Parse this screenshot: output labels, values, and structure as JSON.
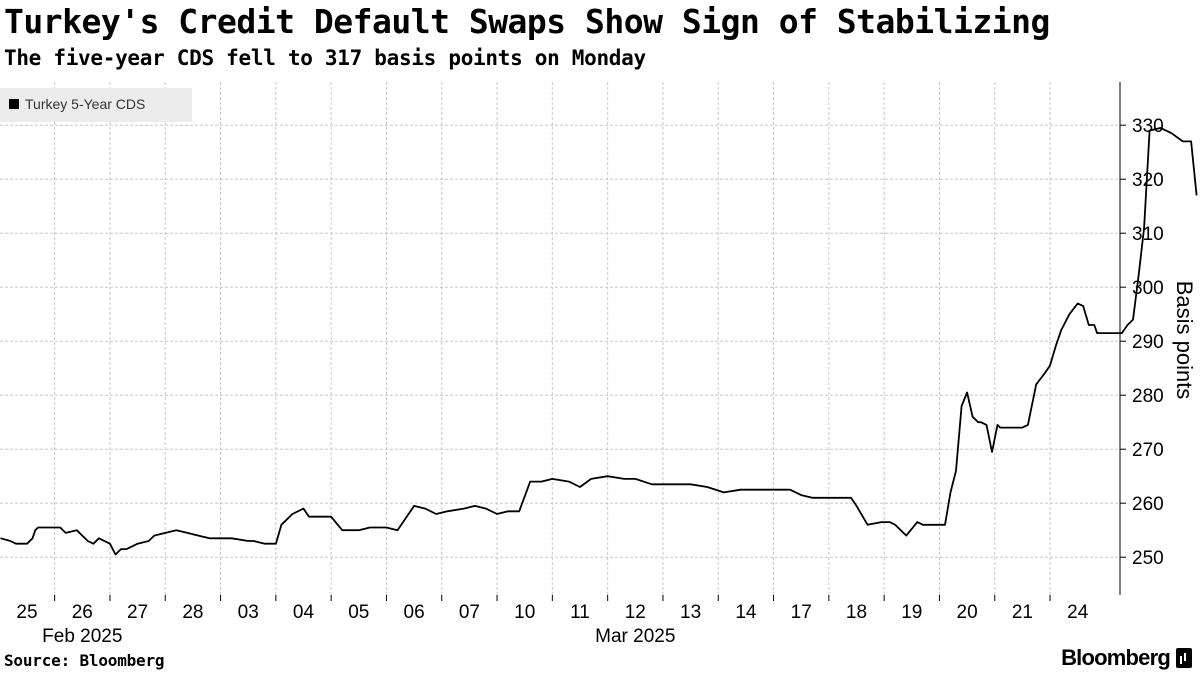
{
  "header": {
    "title": "Turkey's Credit Default Swaps Show Sign of Stabilizing",
    "subtitle": "The five-year CDS fell to 317 basis points on Monday"
  },
  "footer": {
    "source": "Source: Bloomberg",
    "brand": "Bloomberg"
  },
  "chart_data": {
    "type": "line",
    "title": "Turkey's Credit Default Swaps Show Sign of Stabilizing",
    "subtitle": "The five-year CDS fell to 317 basis points on Monday",
    "ylabel": "Basis points",
    "xlabel": "",
    "ylim": [
      243,
      338
    ],
    "yticks": [
      250,
      260,
      270,
      280,
      290,
      300,
      310,
      320,
      330
    ],
    "grid": true,
    "legend": {
      "placement": "top-left",
      "entries": [
        "Turkey 5-Year CDS"
      ]
    },
    "x_tick_labels": [
      "25",
      "26",
      "27",
      "28",
      "03",
      "04",
      "05",
      "06",
      "07",
      "10",
      "11",
      "12",
      "13",
      "14",
      "17",
      "18",
      "19",
      "20",
      "21",
      "24"
    ],
    "month_labels": [
      {
        "label": "Feb 2025",
        "at_tick": 1
      },
      {
        "label": "Mar 2025",
        "at_tick": 11
      }
    ],
    "line_color": "#000000",
    "series": [
      {
        "name": "Turkey 5-Year CDS",
        "x": [
          -0.48,
          -0.3,
          -0.2,
          0.0,
          0.1,
          0.15,
          0.2,
          0.35,
          0.5,
          0.6,
          0.7,
          0.9,
          1.1,
          1.2,
          1.3,
          1.5,
          1.6,
          1.7,
          1.8,
          2.0,
          2.2,
          2.3,
          2.5,
          2.7,
          2.9,
          3.1,
          3.3,
          3.5,
          3.7,
          4.0,
          4.1,
          4.3,
          4.5,
          4.6,
          4.8,
          5.0,
          5.1,
          5.3,
          5.5,
          5.7,
          6.0,
          6.2,
          6.3,
          6.5,
          6.7,
          7.0,
          7.2,
          7.4,
          7.6,
          7.9,
          8.1,
          8.3,
          8.5,
          8.7,
          8.9,
          9.1,
          9.3,
          9.5,
          9.8,
          10.0,
          10.2,
          10.5,
          10.8,
          11.0,
          11.3,
          11.5,
          11.8,
          12.0,
          12.3,
          12.6,
          12.9,
          13.1,
          13.5,
          13.8,
          14.0,
          14.2,
          14.35,
          14.5,
          14.7,
          14.9,
          15.0,
          15.2,
          15.45,
          15.6,
          15.7,
          15.9,
          16.1,
          16.2,
          16.3,
          16.35,
          16.45,
          16.55,
          16.6,
          16.7,
          16.8,
          16.9,
          17.0,
          17.1,
          17.2,
          17.25,
          17.35,
          17.45,
          17.55,
          17.6,
          17.7,
          17.8,
          17.9,
          18.0,
          18.1,
          18.25,
          18.4,
          18.5,
          18.6,
          18.7,
          18.85,
          19.0,
          19.1
        ],
        "values": [
          253.5,
          253,
          252.5,
          252.5,
          253.5,
          255,
          255.5,
          255.5,
          255.5,
          255.5,
          254.5,
          255,
          253,
          252.5,
          253.5,
          252.5,
          250.5,
          251.5,
          251.5,
          252.5,
          253,
          254,
          254.5,
          255,
          254.5,
          254,
          253.5,
          253.5,
          253.5,
          253,
          253,
          252.5,
          252.5,
          256,
          258,
          259,
          257.5,
          257.5,
          257.5,
          255,
          255,
          255.5,
          255.5,
          255.5,
          255,
          259.5,
          259,
          258,
          258.5,
          259,
          259.5,
          259,
          258,
          258.5,
          258.5,
          264,
          264,
          264.5,
          264,
          263,
          264.5,
          265,
          264.5,
          264.5,
          263.5,
          263.5,
          263.5,
          263.5,
          263,
          262,
          262.5,
          262.5,
          262.5,
          262.5,
          261.5,
          261,
          261,
          261,
          261,
          261,
          259.5,
          256,
          256.5,
          256.5,
          256,
          254,
          256.5,
          256,
          256,
          256,
          256,
          256,
          256,
          262,
          266,
          278,
          280.5,
          276,
          275,
          275,
          274.5,
          269.5,
          274.5,
          274,
          274,
          274,
          274,
          274,
          274.5,
          282,
          284,
          285.5,
          289,
          292,
          295,
          297,
          296.5
        ]
      }
    ],
    "series_continued_x": [
      19.2,
      19.3,
      19.35,
      19.45,
      19.55,
      19.7,
      19.8,
      19.9,
      20.0,
      20.1,
      20.2,
      20.3,
      20.5,
      20.7,
      20.9,
      21.05,
      21.15
    ],
    "series_continued_values": [
      293,
      293,
      291.5,
      291.5,
      291.5,
      291.5,
      291.5,
      293,
      294,
      302,
      311,
      329,
      329.5,
      328.5,
      327,
      327,
      317
    ],
    "last_value": 317
  }
}
